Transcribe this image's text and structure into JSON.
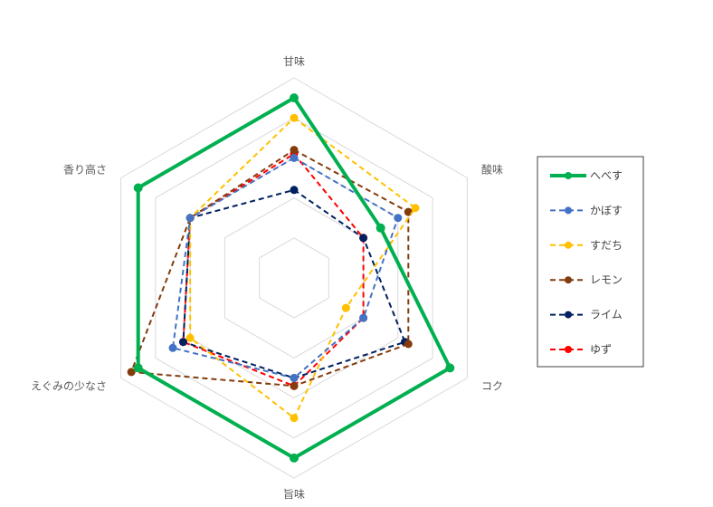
{
  "chart_data": {
    "type": "radar",
    "axes": [
      "甘味",
      "酸味",
      "コク",
      "旨味",
      "えぐみの少なさ",
      "香り高さ"
    ],
    "range": [
      0,
      5
    ],
    "grid": true,
    "legend_position": "right",
    "series": [
      {
        "name": "へべす",
        "color": "#00B050",
        "dash": "solid",
        "values": [
          4.5,
          2.5,
          4.5,
          4.5,
          4.5,
          4.5
        ]
      },
      {
        "name": "かぼす",
        "color": "#4472C4",
        "dash": "dashed",
        "values": [
          3.0,
          3.0,
          2.0,
          2.5,
          3.5,
          3.0
        ]
      },
      {
        "name": "すだち",
        "color": "#FFC000",
        "dash": "dashed",
        "values": [
          4.0,
          3.5,
          1.5,
          3.5,
          3.0,
          3.0
        ]
      },
      {
        "name": "レモン",
        "color": "#843C0C",
        "dash": "dashed",
        "values": [
          3.2,
          3.3,
          3.3,
          2.7,
          4.7,
          3.0
        ]
      },
      {
        "name": "ライム",
        "color": "#002060",
        "dash": "dashed",
        "values": [
          2.2,
          2.0,
          3.2,
          2.5,
          3.2,
          3.0
        ]
      },
      {
        "name": "ゆず",
        "color": "#FF0000",
        "dash": "dashed",
        "values": [
          3.1,
          2.0,
          2.0,
          2.7,
          3.2,
          3.0
        ]
      }
    ]
  }
}
